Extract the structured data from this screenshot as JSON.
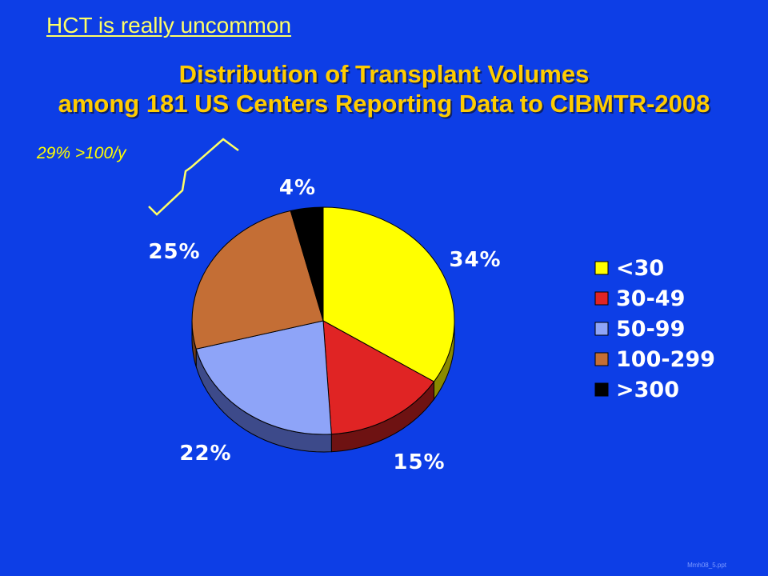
{
  "slide": {
    "header_link": "HCT is really uncommon",
    "title_line1": "Distribution of Transplant Volumes",
    "title_line2": "among 181 US Centers Reporting Data to CIBMTR-2008",
    "annotation": "29% >100/y",
    "footer": "Mmh08_5.ppt",
    "colors": {
      "background": "#0d3ee6",
      "title": "#ffcc00",
      "header": "#ffff66"
    }
  },
  "chart_data": {
    "type": "pie",
    "title": "Distribution of Transplant Volumes among 181 US Centers Reporting Data to CIBMTR-2008",
    "categories": [
      "<30",
      "30-49",
      "50-99",
      "100-299",
      ">300"
    ],
    "values": [
      34,
      15,
      22,
      25,
      4
    ],
    "labels": [
      "34%",
      "15%",
      "22%",
      "25%",
      "4%"
    ],
    "colors": [
      "#ffff00",
      "#e02424",
      "#8ea4f8",
      "#c46e35",
      "#000000"
    ],
    "side_colors": [
      "#8a8a00",
      "#6e1212",
      "#3d4a8a",
      "#6b3a1c",
      "#000000"
    ],
    "legend_placement": "right"
  }
}
